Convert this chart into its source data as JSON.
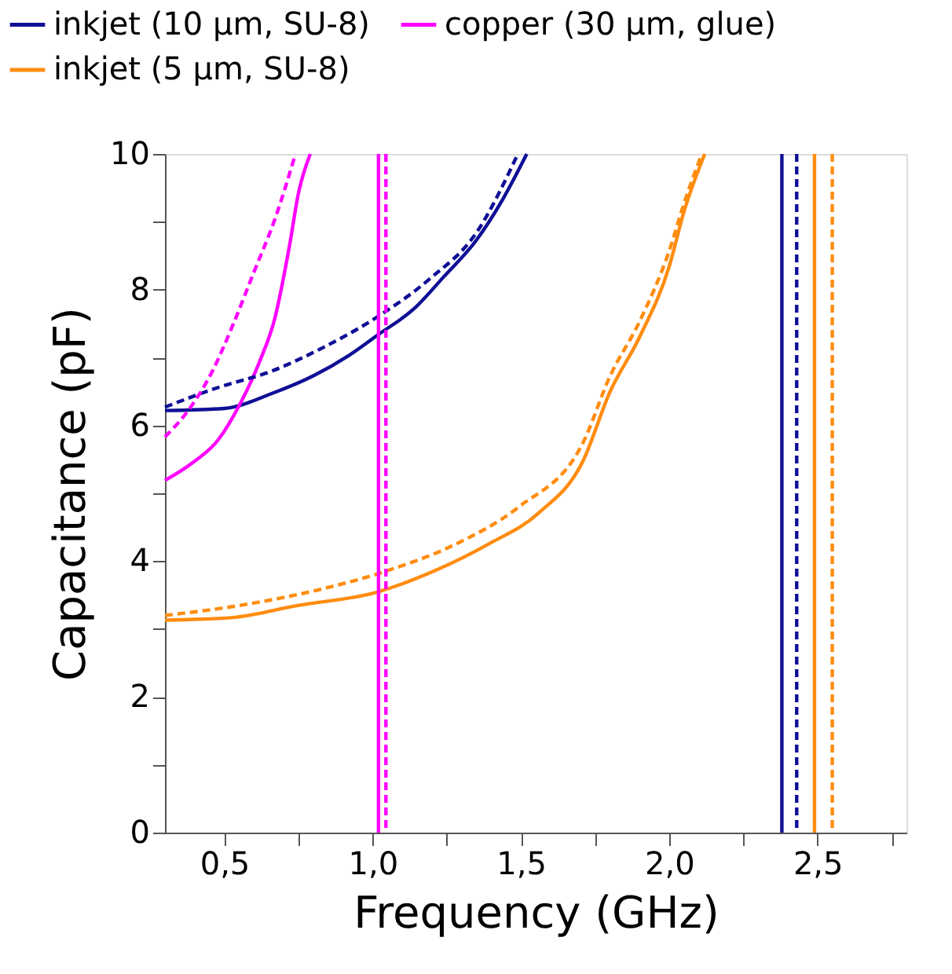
{
  "chart_data": {
    "type": "line",
    "xlabel": "Frequency (GHz)",
    "ylabel": "Capacitance (pF)",
    "xlim": [
      0.3,
      2.8
    ],
    "ylim": [
      0,
      10
    ],
    "xticks": [
      {
        "value": 0.5,
        "label": "0,5"
      },
      {
        "value": 0.75,
        "label": null
      },
      {
        "value": 1.0,
        "label": "1,0"
      },
      {
        "value": 1.25,
        "label": null
      },
      {
        "value": 1.5,
        "label": "1,5"
      },
      {
        "value": 1.75,
        "label": null
      },
      {
        "value": 2.0,
        "label": "2,0"
      },
      {
        "value": 2.25,
        "label": null
      },
      {
        "value": 2.5,
        "label": "2,5"
      },
      {
        "value": 2.75,
        "label": null
      }
    ],
    "yticks": [
      0,
      {
        "value": 1,
        "label": null
      },
      2,
      {
        "value": 3,
        "label": null
      },
      4,
      {
        "value": 5,
        "label": null
      },
      6,
      {
        "value": 7,
        "label": null
      },
      8,
      {
        "value": 9,
        "label": null
      },
      10
    ],
    "grid": false,
    "legend": "top",
    "marker": "none",
    "series": [
      {
        "name": "inkjet (10 µm, SU-8)",
        "color": "#0f0f96",
        "line_style": "solid",
        "x": [
          0.3,
          0.5,
          0.66,
          0.8,
          0.92,
          1.02,
          1.14,
          1.24,
          1.35,
          1.44,
          1.52
        ],
        "values": [
          6.22,
          6.25,
          6.47,
          6.73,
          7.03,
          7.34,
          7.72,
          8.19,
          8.73,
          9.34,
          10
        ]
      },
      {
        "name": "copper (30 µm, glue)",
        "color": "#ff00ff",
        "line_style": "solid",
        "x": [
          0.3,
          0.39,
          0.48,
          0.55,
          0.62,
          0.67,
          0.72,
          0.75,
          0.79
        ],
        "values": [
          5.19,
          5.44,
          5.79,
          6.29,
          6.95,
          7.57,
          8.65,
          9.42,
          10
        ]
      },
      {
        "name": "inkjet (5 µm, SU-8)",
        "color": "#ff8c0f",
        "line_style": "solid",
        "x": [
          0.3,
          0.53,
          0.74,
          1.02,
          1.21,
          1.39,
          1.56,
          1.71,
          1.8,
          1.9,
          2.0,
          2.05,
          2.12
        ],
        "values": [
          3.13,
          3.17,
          3.34,
          3.55,
          3.86,
          4.25,
          4.71,
          5.48,
          6.49,
          7.3,
          8.34,
          9.15,
          10
        ]
      },
      {
        "color": "#0f0f96",
        "line_style": "dashed",
        "x": [
          0.3,
          0.48,
          0.66,
          0.83,
          1.02,
          1.19,
          1.35,
          1.49
        ],
        "values": [
          6.27,
          6.56,
          6.8,
          7.14,
          7.61,
          8.15,
          8.84,
          10
        ]
      },
      {
        "color": "#ff00ff",
        "line_style": "dashed",
        "x": [
          0.3,
          0.39,
          0.46,
          0.53,
          0.6,
          0.67,
          0.74
        ],
        "values": [
          5.83,
          6.29,
          6.8,
          7.49,
          8.26,
          9.03,
          10
        ]
      },
      {
        "color": "#ff8c0f",
        "line_style": "dashed",
        "x": [
          0.3,
          0.57,
          0.83,
          1.05,
          1.28,
          1.49,
          1.71,
          1.8,
          1.9,
          2.0,
          2.05,
          2.11
        ],
        "values": [
          3.2,
          3.36,
          3.59,
          3.86,
          4.25,
          4.79,
          5.75,
          6.72,
          7.53,
          8.57,
          9.27,
          10
        ]
      }
    ],
    "ref_lines": [
      {
        "axis": "x",
        "value": 1.02,
        "color": "#ff00ff",
        "line_style": "solid"
      },
      {
        "axis": "x",
        "value": 1.045,
        "color": "#ff00ff",
        "line_style": "dashed"
      },
      {
        "axis": "x",
        "value": 2.38,
        "color": "#0f0f96",
        "line_style": "solid"
      },
      {
        "axis": "x",
        "value": 2.43,
        "color": "#0f0f96",
        "line_style": "dashed"
      },
      {
        "axis": "x",
        "value": 2.49,
        "color": "#ff8c0f",
        "line_style": "solid"
      },
      {
        "axis": "x",
        "value": 2.55,
        "color": "#ff8c0f",
        "line_style": "dashed"
      }
    ]
  }
}
